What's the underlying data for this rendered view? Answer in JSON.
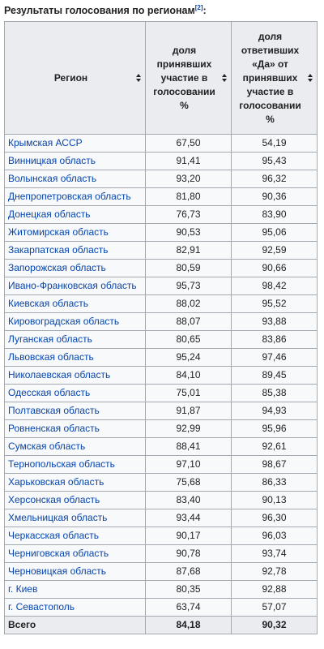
{
  "caption": {
    "text": "Результаты голосования по регионам",
    "ref": "[2]"
  },
  "headers": {
    "region": "Регион",
    "turnout_lines": [
      "доля",
      "принявших",
      "участие в",
      "голосовании",
      "%"
    ],
    "yes_lines": [
      "доля",
      "ответивших",
      "«Да» от",
      "принявших",
      "участие в",
      "голосовании",
      "%"
    ]
  },
  "rows": [
    {
      "region": "Крымская АССР",
      "turnout": "67,50",
      "yes": "54,19"
    },
    {
      "region": "Винницкая область",
      "turnout": "91,41",
      "yes": "95,43"
    },
    {
      "region": "Волынская область",
      "turnout": "93,20",
      "yes": "96,32"
    },
    {
      "region": "Днепропетровская область",
      "turnout": "81,80",
      "yes": "90,36"
    },
    {
      "region": "Донецкая область",
      "turnout": "76,73",
      "yes": "83,90"
    },
    {
      "region": "Житомирская область",
      "turnout": "90,53",
      "yes": "95,06"
    },
    {
      "region": "Закарпатская область",
      "turnout": "82,91",
      "yes": "92,59"
    },
    {
      "region": "Запорожская область",
      "turnout": "80,59",
      "yes": "90,66"
    },
    {
      "region": "Ивано-Франковская область",
      "turnout": "95,73",
      "yes": "98,42"
    },
    {
      "region": "Киевская область",
      "turnout": "88,02",
      "yes": "95,52"
    },
    {
      "region": "Кировоградская область",
      "turnout": "88,07",
      "yes": "93,88"
    },
    {
      "region": "Луганская область",
      "turnout": "80,65",
      "yes": "83,86"
    },
    {
      "region": "Львовская область",
      "turnout": "95,24",
      "yes": "97,46"
    },
    {
      "region": "Николаевская область",
      "turnout": "84,10",
      "yes": "89,45"
    },
    {
      "region": "Одесская область",
      "turnout": "75,01",
      "yes": "85,38"
    },
    {
      "region": "Полтавская область",
      "turnout": "91,87",
      "yes": "94,93"
    },
    {
      "region": "Ровненская область",
      "turnout": "92,99",
      "yes": "95,96"
    },
    {
      "region": "Сумская область",
      "turnout": "88,41",
      "yes": "92,61"
    },
    {
      "region": "Тернопольская область",
      "turnout": "97,10",
      "yes": "98,67"
    },
    {
      "region": "Харьковская область",
      "turnout": "75,68",
      "yes": "86,33"
    },
    {
      "region": "Херсонская область",
      "turnout": "83,40",
      "yes": "90,13"
    },
    {
      "region": "Хмельницкая область",
      "turnout": "93,44",
      "yes": "96,30"
    },
    {
      "region": "Черкасская область",
      "turnout": "90,17",
      "yes": "96,03"
    },
    {
      "region": "Черниговская область",
      "turnout": "90,78",
      "yes": "93,74"
    },
    {
      "region": "Черновицкая область",
      "turnout": "87,68",
      "yes": "92,78"
    },
    {
      "region": "г. Киев",
      "turnout": "80,35",
      "yes": "92,88"
    },
    {
      "region": "г. Севастополь",
      "turnout": "63,74",
      "yes": "57,07"
    }
  ],
  "total": {
    "label": "Всего",
    "turnout": "84,18",
    "yes": "90,32"
  },
  "colors": {
    "link": "#0645ad",
    "header_bg": "#eaecf0",
    "cell_bg": "#f8f9fa",
    "border": "#a2a9b1"
  },
  "icons": {
    "sort": "sort-arrows-icon"
  }
}
